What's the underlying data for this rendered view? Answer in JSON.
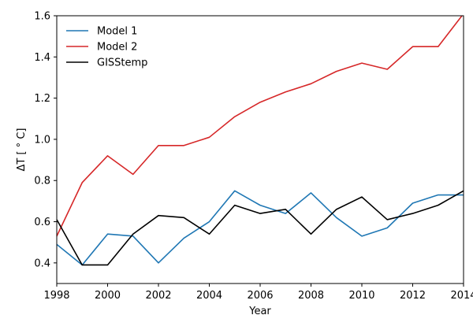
{
  "chart_data": {
    "type": "line",
    "title": "",
    "xlabel": "Year",
    "ylabel": "ΔT [$^\\circ$C]",
    "ylabel_display": "ΔT [ ° C]",
    "xlim": [
      1998,
      2014
    ],
    "ylim": [
      0.3,
      1.6
    ],
    "xticks": [
      1998,
      2000,
      2002,
      2004,
      2006,
      2008,
      2010,
      2012,
      2014
    ],
    "yticks": [
      0.4,
      0.6,
      0.8,
      1.0,
      1.2,
      1.4,
      1.6
    ],
    "ytick_labels": [
      "0.4",
      "0.6",
      "0.8",
      "1.0",
      "1.2",
      "1.4",
      "1.6"
    ],
    "grid": false,
    "legend_position": "top-left",
    "x": [
      1998,
      1999,
      2000,
      2001,
      2002,
      2003,
      2004,
      2005,
      2006,
      2007,
      2008,
      2009,
      2010,
      2011,
      2012,
      2013,
      2014
    ],
    "series": [
      {
        "name": "Model 1",
        "color": "#1f77b4",
        "values": [
          0.49,
          0.39,
          0.54,
          0.53,
          0.4,
          0.52,
          0.6,
          0.75,
          0.68,
          0.64,
          0.74,
          0.62,
          0.53,
          0.57,
          0.69,
          0.73,
          0.73
        ]
      },
      {
        "name": "Model 2",
        "color": "#d62728",
        "values": [
          0.53,
          0.79,
          0.92,
          0.83,
          0.97,
          0.97,
          1.01,
          1.11,
          1.18,
          1.23,
          1.27,
          1.33,
          1.37,
          1.34,
          1.45,
          1.45,
          1.61
        ]
      },
      {
        "name": "GISStemp",
        "color": "#000000",
        "values": [
          0.61,
          0.39,
          0.39,
          0.54,
          0.63,
          0.62,
          0.54,
          0.68,
          0.64,
          0.66,
          0.54,
          0.66,
          0.72,
          0.61,
          0.64,
          0.68,
          0.75
        ]
      }
    ]
  }
}
